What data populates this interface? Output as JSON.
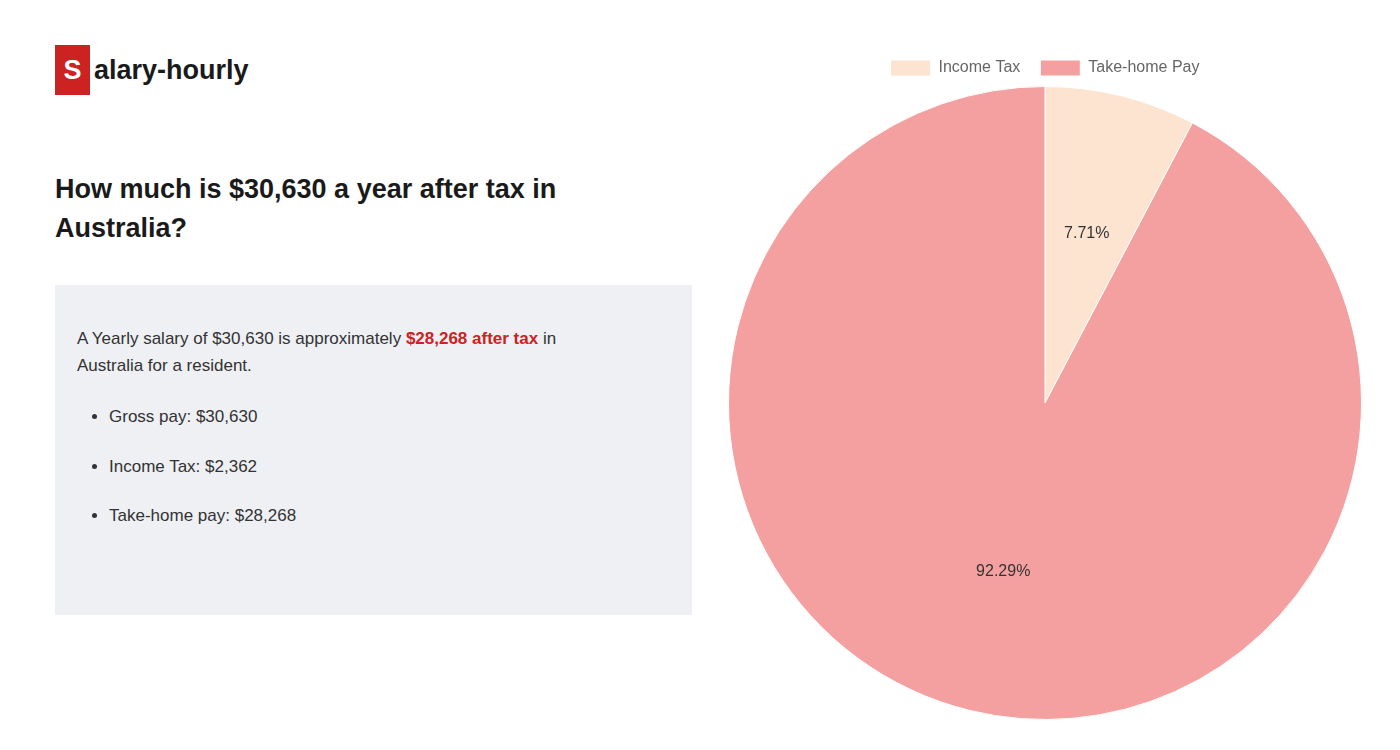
{
  "chart_data": {
    "type": "pie",
    "title": "How much is $30,630 a year after tax in\nAustralia?",
    "annotations": [
      {
        "text": "S",
        "color": "#cc2222"
      },
      {
        "text": "alary-hourly"
      },
      {
        "text": "A Yearly salary of $30,630 is approximately "
      },
      {
        "text": "$28,268 after tax",
        "color": "#cc2222"
      },
      {
        "text": " in"
      },
      {
        "text": "Australia for a resident."
      },
      {
        "text": "Gross pay: $30,630"
      },
      {
        "text": "Income Tax: $2,362"
      },
      {
        "text": "Take-home pay: $28,268"
      }
    ],
    "categories": [
      "Income Tax",
      "Take-home Pay"
    ],
    "values": [
      7.71,
      92.29
    ],
    "value_labels": [
      "7.71%",
      "92.29%"
    ],
    "colors": [
      "#fce4d0",
      "#f4a0a0"
    ],
    "data_labels": true,
    "legend": "top"
  }
}
